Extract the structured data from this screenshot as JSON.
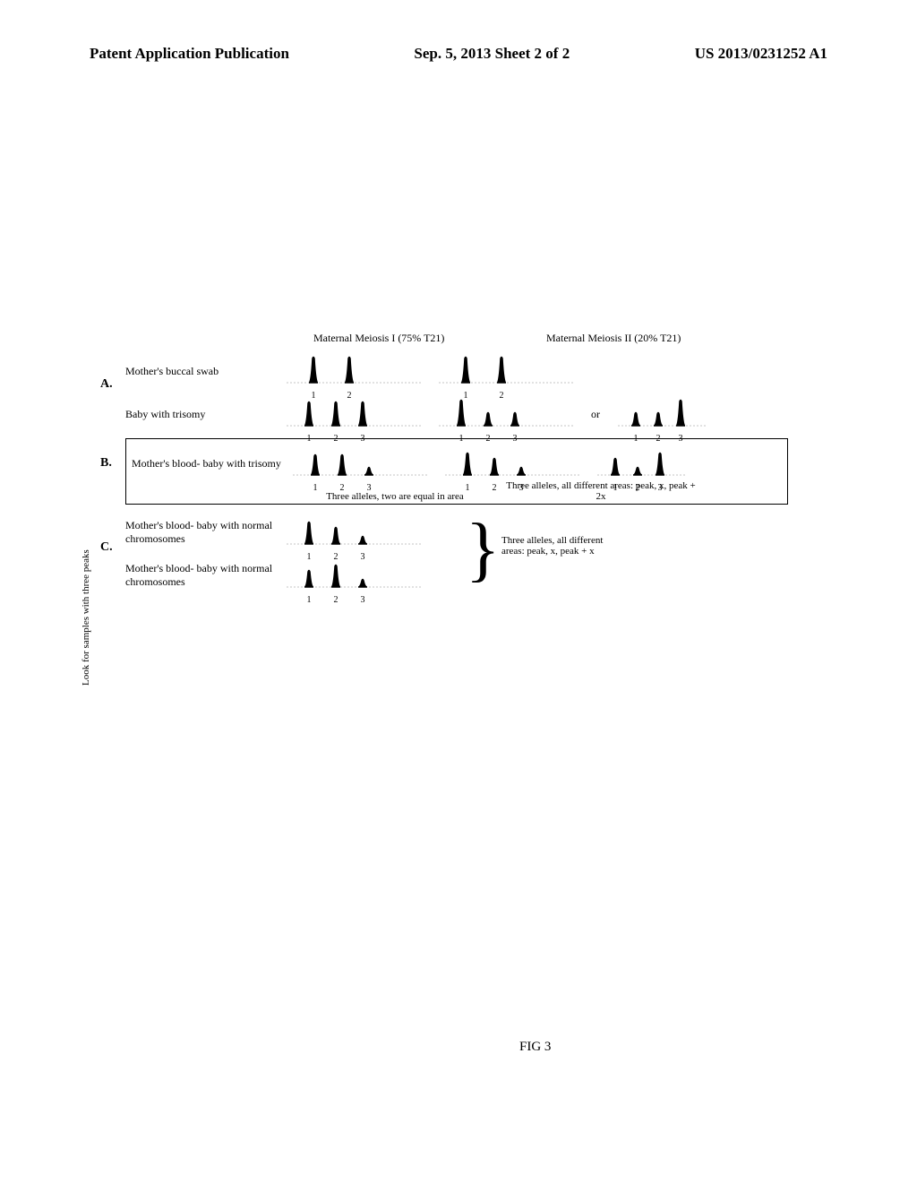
{
  "header": {
    "left": "Patent Application Publication",
    "center": "Sep. 5, 2013  Sheet 2 of 2",
    "right": "US 2013/0231252 A1"
  },
  "figure": {
    "label": "FIG 3",
    "columnHeaders": {
      "col1": "Maternal Meiosis I (75% T21)",
      "col2": "Maternal Meiosis II (20% T21)"
    },
    "panels": {
      "A": {
        "letter": "A.",
        "row1_label": "Mother's buccal swab",
        "row2_label": "Baby with trisomy"
      },
      "B": {
        "letter": "B.",
        "row1_label": "Mother's blood- baby with trisomy",
        "caption_left": "Three alleles, two are equal in area",
        "caption_right": "Three alleles, all different areas: peak, x, peak + 2x"
      },
      "C": {
        "letter": "C.",
        "row1_label": "Mother's blood- baby with normal chromosomes",
        "row2_label": "Mother's blood- baby with normal chromosomes",
        "caption": "Three alleles, all different areas: peak, x, peak + x"
      }
    },
    "verticalLabel": "Look for samples with three peaks",
    "orText": "or",
    "peakColors": {
      "fill": "#000000",
      "stroke": "#000000",
      "baseline": "#888888"
    },
    "chartStyle": {
      "baseline_stroke_width": 0.5,
      "peak_stroke_width": 1.5
    },
    "peakSets": {
      "mother2": {
        "positions": [
          30,
          70
        ],
        "heights": [
          30,
          30
        ],
        "labels": [
          "1",
          "2"
        ]
      },
      "baby_mI": {
        "positions": [
          25,
          55,
          85
        ],
        "heights": [
          28,
          28,
          28
        ],
        "labels": [
          "1",
          "2",
          "3"
        ]
      },
      "baby_mII_a": {
        "positions": [
          25,
          55,
          85
        ],
        "heights": [
          30,
          16,
          16
        ],
        "labels": [
          "1",
          "2",
          "3"
        ]
      },
      "baby_mII_b": {
        "positions": [
          20,
          45,
          70
        ],
        "heights": [
          16,
          16,
          30
        ],
        "labels": [
          "1",
          "2",
          "3"
        ]
      },
      "blood_trisomy_mI": {
        "positions": [
          25,
          55,
          85
        ],
        "heights": [
          24,
          24,
          10
        ],
        "labels": [
          "1",
          "2",
          "3"
        ]
      },
      "blood_trisomy_mII_a": {
        "positions": [
          25,
          55,
          85
        ],
        "heights": [
          26,
          20,
          10
        ],
        "labels": [
          "1",
          "2",
          "3"
        ]
      },
      "blood_trisomy_mII_b": {
        "positions": [
          20,
          45,
          70
        ],
        "heights": [
          20,
          10,
          26
        ],
        "labels": [
          "1",
          "2",
          "3"
        ]
      },
      "blood_normal_1": {
        "positions": [
          25,
          55,
          85
        ],
        "heights": [
          26,
          20,
          10
        ],
        "labels": [
          "1",
          "2",
          "3"
        ]
      },
      "blood_normal_2": {
        "positions": [
          25,
          55,
          85
        ],
        "heights": [
          20,
          26,
          10
        ],
        "labels": [
          "1",
          "2",
          "3"
        ]
      }
    }
  }
}
